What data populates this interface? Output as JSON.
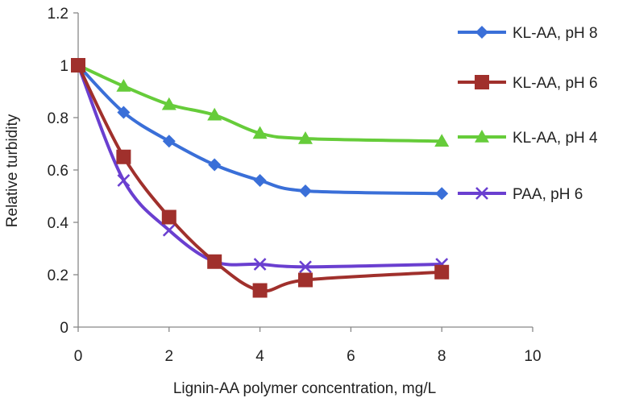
{
  "chart_data": {
    "type": "line",
    "title": "",
    "xlabel": "Lignin-AA polymer concentration, mg/L",
    "ylabel": "Relative turbidity",
    "xlim": [
      0,
      10
    ],
    "ylim": [
      0,
      1.2
    ],
    "xticks": [
      "0",
      "2",
      "4",
      "6",
      "8",
      "10"
    ],
    "yticks": [
      "0",
      "0.2",
      "0.4",
      "0.6",
      "0.8",
      "1",
      "1.2"
    ],
    "grid": false,
    "legend_position": "right",
    "series": [
      {
        "name": "KL-AA, pH 8",
        "color": "#3a6fd8",
        "marker": "diamond",
        "x": [
          0,
          1,
          2,
          3,
          4,
          5,
          8
        ],
        "y": [
          1.0,
          0.82,
          0.71,
          0.62,
          0.56,
          0.52,
          0.51
        ]
      },
      {
        "name": "KL-AA, pH 6",
        "color": "#a0302c",
        "marker": "square",
        "x": [
          0,
          1,
          2,
          3,
          4,
          5,
          8
        ],
        "y": [
          1.0,
          0.65,
          0.42,
          0.25,
          0.14,
          0.18,
          0.21
        ]
      },
      {
        "name": "KL-AA, pH 4",
        "color": "#66cc3a",
        "marker": "triangle",
        "x": [
          0,
          1,
          2,
          3,
          4,
          5,
          8
        ],
        "y": [
          1.0,
          0.92,
          0.85,
          0.81,
          0.74,
          0.72,
          0.71
        ]
      },
      {
        "name": "PAA, pH 6",
        "color": "#6a3fd0",
        "marker": "x",
        "x": [
          0,
          1,
          2,
          3,
          4,
          5,
          8
        ],
        "y": [
          1.0,
          0.56,
          0.37,
          0.25,
          0.24,
          0.23,
          0.24
        ]
      }
    ]
  }
}
